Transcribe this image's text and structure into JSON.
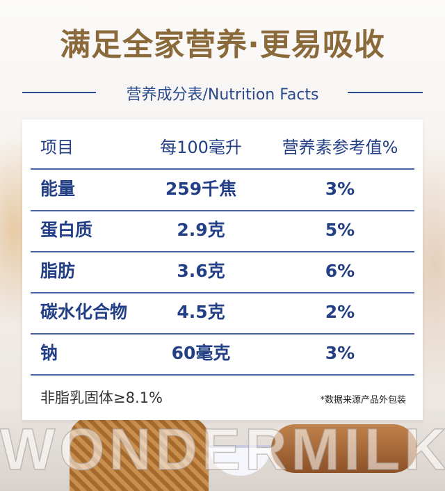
{
  "headline": "满足全家营养·更易吸收",
  "subtitle": "营养成分表/Nutrition Facts",
  "table": {
    "headers": [
      "项目",
      "每100毫升",
      "营养素参考值%"
    ],
    "rows": [
      [
        "能量",
        "259千焦",
        "3%"
      ],
      [
        "蛋白质",
        "2.9克",
        "5%"
      ],
      [
        "脂肪",
        "3.6克",
        "6%"
      ],
      [
        "碳水化合物",
        "4.5克",
        "2%"
      ],
      [
        "钠",
        "60毫克",
        "3%"
      ]
    ]
  },
  "footer": {
    "note": "非脂乳固体≥8.1%",
    "source": "*数据来源产品外包装"
  },
  "watermark": "WONDERMILK",
  "colors": {
    "headline": "#8a6a3a",
    "accent_blue": "#2b4a8b",
    "table_text": "#233f86"
  }
}
